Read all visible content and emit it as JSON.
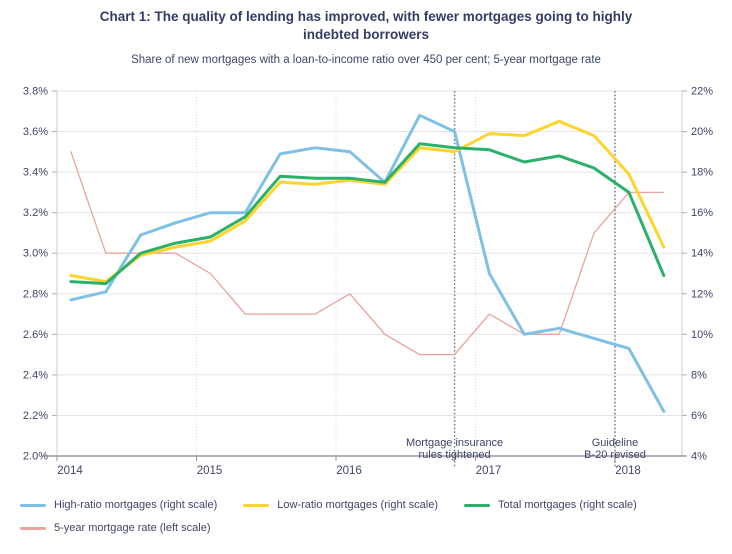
{
  "title": "Chart 1: The quality of lending has improved, with fewer mortgages going to highly indebted borrowers",
  "subtitle": "Share of new mortgages with a loan-to-income ratio over 450 per cent; 5-year mortgage rate",
  "chart_data": {
    "type": "line",
    "x_quarters": [
      "2014 Q1",
      "2014 Q2",
      "2014 Q3",
      "2014 Q4",
      "2015 Q1",
      "2015 Q2",
      "2015 Q3",
      "2015 Q4",
      "2016 Q1",
      "2016 Q2",
      "2016 Q3",
      "2016 Q4",
      "2017 Q1",
      "2017 Q2",
      "2017 Q3",
      "2017 Q4",
      "2018 Q1",
      "2018 Q2"
    ],
    "x_axis": {
      "tick_years": [
        2014,
        2015,
        2016,
        2017,
        2018
      ],
      "tick_labels": [
        "2014",
        "2015",
        "2016",
        "2017",
        "2018"
      ]
    },
    "left_axis": {
      "min": 2.0,
      "max": 3.8,
      "step": 0.2,
      "tick_labels": [
        "3.8%",
        "3.6%",
        "3.4%",
        "3.2%",
        "3.0%",
        "2.8%",
        "2.6%",
        "2.4%",
        "2.2%",
        "2.0%"
      ]
    },
    "right_axis": {
      "min": 4,
      "max": 22,
      "step": 2,
      "tick_labels": [
        "22%",
        "20%",
        "18%",
        "16%",
        "14%",
        "12%",
        "10%",
        "8%",
        "6%",
        "4%"
      ]
    },
    "grid": "horizontal-solid, year-dotted",
    "series": [
      {
        "name": "5-year mortgage rate",
        "scale": "left",
        "color": "#e8a39c",
        "width": 1.3,
        "values": [
          3.5,
          3.0,
          3.0,
          3.0,
          2.9,
          2.7,
          2.7,
          2.7,
          2.8,
          2.6,
          2.5,
          2.5,
          2.7,
          2.6,
          2.6,
          3.1,
          3.3,
          3.3
        ]
      },
      {
        "name": "High-ratio mortgages",
        "scale": "right",
        "color": "#7ec1e5",
        "width": 3,
        "values": [
          11.7,
          12.1,
          14.9,
          15.5,
          16.0,
          16.0,
          18.9,
          19.2,
          19.0,
          17.5,
          20.8,
          20.0,
          13.0,
          10.0,
          10.3,
          9.8,
          9.3,
          6.2
        ]
      },
      {
        "name": "Low-ratio mortgages",
        "scale": "right",
        "color": "#fed42d",
        "width": 3,
        "values": [
          12.9,
          12.6,
          13.9,
          14.3,
          14.6,
          15.6,
          17.5,
          17.4,
          17.6,
          17.4,
          19.2,
          19.0,
          19.9,
          19.8,
          20.5,
          19.8,
          17.9,
          14.3
        ]
      },
      {
        "name": "Total mortgages",
        "scale": "right",
        "color": "#2cb16a",
        "width": 3,
        "values": [
          12.6,
          12.5,
          14.0,
          14.5,
          14.8,
          15.8,
          17.8,
          17.7,
          17.7,
          17.5,
          19.4,
          19.2,
          19.1,
          18.5,
          18.8,
          18.2,
          17.0,
          12.9
        ]
      }
    ],
    "annotations": [
      {
        "lines": [
          "Mortgage insurance",
          "rules tightened"
        ],
        "year": 2016.85
      },
      {
        "lines": [
          "Guideline",
          "B-20 revised"
        ],
        "year": 2018.0
      }
    ]
  },
  "legend": {
    "items": [
      {
        "label": "High-ratio mortgages (right scale)",
        "color": "#7ec1e5"
      },
      {
        "label": "Low-ratio mortgages (right scale)",
        "color": "#fed42d"
      },
      {
        "label": "Total mortgages (right scale)",
        "color": "#2cb16a"
      },
      {
        "label": "5-year mortgage rate (left scale)",
        "color": "#e8a39c"
      }
    ]
  }
}
